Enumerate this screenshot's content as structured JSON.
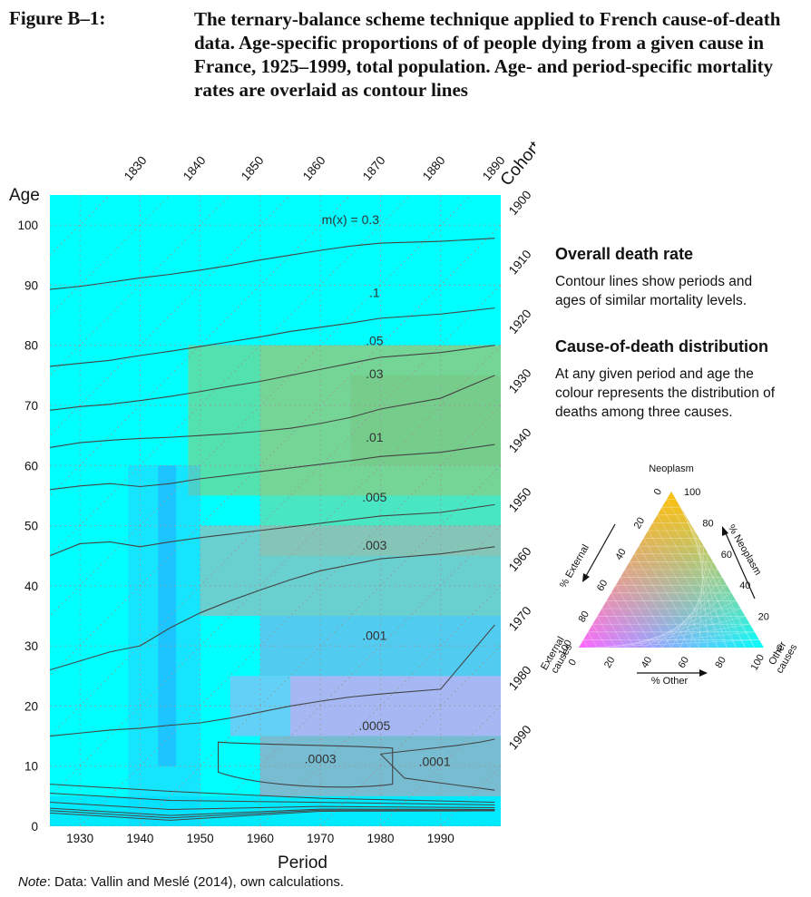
{
  "figure": {
    "label": "Figure B–1:",
    "title": "The ternary-balance scheme technique applied to French cause-of-death data. Age-specific proportions of of people dying from a given cause in France, 1925–1999, total population. Age- and period-specific mortality rates are overlaid as contour lines"
  },
  "legend": {
    "heading1": "Overall death rate",
    "text1": "Contour lines show periods and ages of similar mortality levels.",
    "heading2": "Cause-of-death distribution",
    "text2": "At any given period and age the colour represents the distribution of deaths among three causes."
  },
  "note": {
    "label": "Note",
    "text": ":  Data: Vallin and Meslé (2014), own calculations."
  },
  "colors": {
    "neoplasm": "#ffc107",
    "external": "#ff66ff",
    "other": "#00ffff",
    "contour": "#444444",
    "grid": "#999999"
  },
  "chart_data": {
    "type": "heatmap",
    "xlabel": "Period",
    "ylabel": "Age",
    "cohort_label": "Cohort",
    "xlim": [
      1925,
      2000
    ],
    "ylim": [
      0,
      105
    ],
    "x_ticks": [
      1930,
      1940,
      1950,
      1960,
      1970,
      1980,
      1990
    ],
    "y_ticks": [
      0,
      10,
      20,
      30,
      40,
      50,
      60,
      70,
      80,
      90,
      100
    ],
    "cohort_ticks_top": [
      1830,
      1840,
      1850,
      1860,
      1870,
      1880,
      1890
    ],
    "cohort_ticks_right": [
      1900,
      1910,
      1920,
      1930,
      1940,
      1950,
      1960,
      1970,
      1980,
      1990
    ],
    "contours": [
      {
        "label": "m(x) = 0.3",
        "label_x": 1975,
        "label_y": 100.2,
        "ages": [
          null
        ]
      },
      {
        "label": ".1",
        "label_x": 1979,
        "label_y": 88,
        "ages": [
          89.3,
          89.8,
          90.5,
          91.2,
          91.8,
          92.5,
          93.3,
          94.2,
          95,
          95.8,
          96.5,
          97,
          97.3,
          97.8
        ]
      },
      {
        "label": ".05",
        "label_x": 1979,
        "label_y": 80,
        "ages": [
          76.5,
          77,
          77.5,
          78.3,
          79,
          79.8,
          80.6,
          81.4,
          82.3,
          83,
          83.7,
          84.5,
          85.2,
          86.2
        ]
      },
      {
        "label": ".03",
        "label_x": 1979,
        "label_y": 74.5,
        "ages": [
          69.2,
          69.8,
          70.2,
          70.8,
          71.5,
          72.3,
          73.2,
          74,
          75,
          76,
          77,
          78,
          78.8,
          80
        ]
      },
      {
        "label": ".01",
        "label_x": 1979,
        "label_y": 64,
        "ages": [
          63,
          63.8,
          64.2,
          64.5,
          64.7,
          65,
          65.3,
          65.7,
          66.2,
          67,
          68,
          69.4,
          71.2,
          75
        ]
      },
      {
        "label": ".005",
        "label_x": 1979,
        "label_y": 54,
        "ages": [
          56,
          56.6,
          57,
          56.5,
          57,
          57.8,
          58.4,
          59,
          59.6,
          60.2,
          60.8,
          61.5,
          62.2,
          63.5
        ]
      },
      {
        "label": ".003",
        "label_x": 1979,
        "label_y": 46,
        "ages": [
          45,
          47,
          47.3,
          46.5,
          47.3,
          48,
          48.6,
          49.2,
          49.8,
          50.4,
          51,
          51.6,
          52.2,
          53.5
        ]
      },
      {
        "label": ".001",
        "label_x": 1979,
        "label_y": 31,
        "ages": [
          26,
          27.5,
          29,
          30,
          33,
          35.5,
          37.5,
          39.3,
          41,
          42.5,
          43.5,
          44.5,
          45.3,
          46.5
        ]
      },
      {
        "label": ".0005",
        "label_x": 1979,
        "label_y": 16,
        "ages": [
          15,
          15.5,
          16,
          16.3,
          16.8,
          17.2,
          18,
          19,
          20,
          20.8,
          21.5,
          22,
          22.8,
          33.5
        ]
      },
      {
        "label": ".0003",
        "label_x": 1970,
        "label_y": 10.5,
        "ages": [
          null
        ]
      },
      {
        "label": ".0001",
        "label_x": 1989,
        "label_y": 10,
        "ages": [
          null
        ]
      }
    ],
    "contour_x": [
      1925,
      1930,
      1935,
      1940,
      1945,
      1950,
      1955,
      1960,
      1965,
      1970,
      1975,
      1980,
      1990,
      1999
    ]
  },
  "ternary": {
    "title": "Neoplasm",
    "left_label": "External\ncauses",
    "right_label": "Other\ncauses",
    "axis_neoplasm": "% Neoplasm",
    "axis_external": "% External",
    "axis_other": "% Other",
    "ticks": [
      0,
      20,
      40,
      60,
      80,
      100
    ]
  }
}
